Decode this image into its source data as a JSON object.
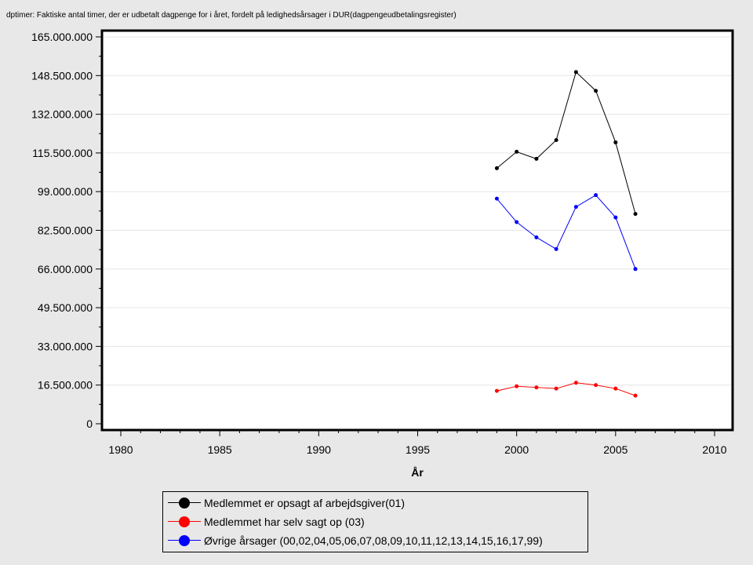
{
  "chart_data": {
    "type": "line",
    "title": "dptimer: Faktiske antal timer, der er udbetalt dagpenge for i året, fordelt på ledighedsårsager i DUR(dagpengeudbetalingsregister)",
    "xlabel": "År",
    "ylabel": "",
    "xlim": [
      1979,
      2011
    ],
    "ylim": [
      0,
      165000000
    ],
    "x_ticks": [
      1980,
      1985,
      1990,
      1995,
      2000,
      2005,
      2010
    ],
    "y_ticks": [
      0,
      16500000,
      33000000,
      49500000,
      66000000,
      82500000,
      99000000,
      115500000,
      132000000,
      148500000,
      165000000
    ],
    "y_tick_labels": [
      "0",
      "16.500.000",
      "33.000.000",
      "49.500.000",
      "66.000.000",
      "82.500.000",
      "99.000.000",
      "115.500.000",
      "132.000.000",
      "148.500.000",
      "165.000.000"
    ],
    "grid": true,
    "legend_position": "bottom",
    "x": [
      1999,
      2000,
      2001,
      2002,
      2003,
      2004,
      2005,
      2006
    ],
    "series": [
      {
        "name": "Medlemmet er opsagt af arbejdsgiver(01)",
        "color": "#000000",
        "values": [
          109000000,
          116000000,
          113000000,
          121000000,
          150000000,
          142000000,
          120000000,
          89500000
        ]
      },
      {
        "name": "Medlemmet har selv sagt op (03)",
        "color": "#ff0000",
        "values": [
          14000000,
          16000000,
          15500000,
          15000000,
          17500000,
          16500000,
          15000000,
          12000000
        ]
      },
      {
        "name": "Øvrige årsager (00,02,04,05,06,07,08,09,10,11,12,13,14,15,16,17,99)",
        "color": "#0000ff",
        "values": [
          96000000,
          86000000,
          79500000,
          74500000,
          92500000,
          97500000,
          88000000,
          66000000
        ]
      }
    ]
  }
}
